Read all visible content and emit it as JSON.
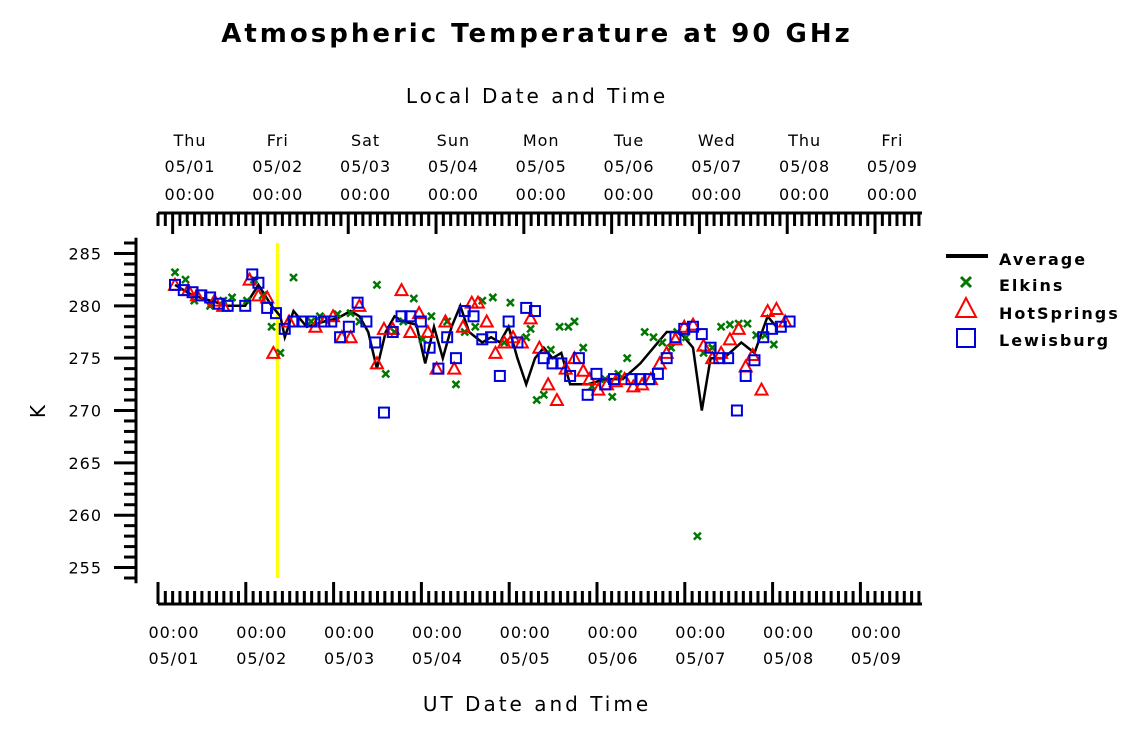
{
  "chart_data": {
    "type": "scatter",
    "title": "Atmospheric Temperature at 90 GHz",
    "top_axis_label": "Local Date and Time",
    "xlabel": "UT Date and Time",
    "ylabel": "K",
    "ylim": [
      254,
      286
    ],
    "yticks": [
      255,
      260,
      265,
      270,
      275,
      280,
      285
    ],
    "x_range_days": [
      "04/30 12:00",
      "05/09 12:00"
    ],
    "marker_line": {
      "value": "05/02 04:00",
      "color": "#ffff00"
    },
    "bottom_ticks": [
      {
        "line1": "00:00",
        "line2": "05/01"
      },
      {
        "line1": "00:00",
        "line2": "05/02"
      },
      {
        "line1": "00:00",
        "line2": "05/03"
      },
      {
        "line1": "00:00",
        "line2": "05/04"
      },
      {
        "line1": "00:00",
        "line2": "05/05"
      },
      {
        "line1": "00:00",
        "line2": "05/06"
      },
      {
        "line1": "00:00",
        "line2": "05/07"
      },
      {
        "line1": "00:00",
        "line2": "05/08"
      },
      {
        "line1": "00:00",
        "line2": "05/09"
      }
    ],
    "top_ticks": [
      {
        "day": "Thu",
        "date": "05/01",
        "time": "00:00"
      },
      {
        "day": "Fri",
        "date": "05/02",
        "time": "00:00"
      },
      {
        "day": "Sat",
        "date": "05/03",
        "time": "00:00"
      },
      {
        "day": "Sun",
        "date": "05/04",
        "time": "00:00"
      },
      {
        "day": "Mon",
        "date": "05/05",
        "time": "00:00"
      },
      {
        "day": "Tue",
        "date": "05/06",
        "time": "00:00"
      },
      {
        "day": "Wed",
        "date": "05/07",
        "time": "00:00"
      },
      {
        "day": "Thu",
        "date": "05/08",
        "time": "00:00"
      },
      {
        "day": "Fri",
        "date": "05/09",
        "time": "00:00"
      }
    ],
    "legend_position": "right",
    "series": [
      {
        "name": "Average",
        "marker": "line",
        "color": "#000000",
        "points": [
          [
            0.0,
            282
          ],
          [
            0.2,
            281
          ],
          [
            0.4,
            280.5
          ],
          [
            0.6,
            280
          ],
          [
            0.8,
            280
          ],
          [
            0.95,
            282
          ],
          [
            1.1,
            280
          ],
          [
            1.2,
            279
          ],
          [
            1.25,
            277
          ],
          [
            1.35,
            279.5
          ],
          [
            1.5,
            278
          ],
          [
            1.7,
            278.5
          ],
          [
            1.85,
            278.8
          ],
          [
            2.0,
            279.5
          ],
          [
            2.1,
            279
          ],
          [
            2.2,
            277.5
          ],
          [
            2.3,
            274
          ],
          [
            2.4,
            277.5
          ],
          [
            2.5,
            279
          ],
          [
            2.6,
            278.5
          ],
          [
            2.75,
            278.2
          ],
          [
            2.85,
            274.5
          ],
          [
            2.95,
            278
          ],
          [
            3.05,
            275
          ],
          [
            3.15,
            278
          ],
          [
            3.25,
            280
          ],
          [
            3.35,
            277.5
          ],
          [
            3.5,
            276.5
          ],
          [
            3.6,
            277
          ],
          [
            3.7,
            276.5
          ],
          [
            3.8,
            278
          ],
          [
            3.9,
            275
          ],
          [
            4.0,
            272.5
          ],
          [
            4.1,
            275
          ],
          [
            4.2,
            276
          ],
          [
            4.3,
            275
          ],
          [
            4.4,
            275.5
          ],
          [
            4.5,
            272.5
          ],
          [
            4.7,
            272.5
          ],
          [
            4.9,
            273
          ],
          [
            5.1,
            273
          ],
          [
            5.3,
            274.5
          ],
          [
            5.45,
            276
          ],
          [
            5.6,
            277.5
          ],
          [
            5.75,
            277.5
          ],
          [
            5.9,
            276
          ],
          [
            6.0,
            270
          ],
          [
            6.1,
            275
          ],
          [
            6.25,
            275
          ],
          [
            6.45,
            276.5
          ],
          [
            6.6,
            275.5
          ],
          [
            6.75,
            279
          ],
          [
            6.85,
            278
          ]
        ]
      },
      {
        "name": "Elkins",
        "marker": "x",
        "color": "#007700",
        "points": [
          [
            0.0,
            283.2
          ],
          [
            0.12,
            282.5
          ],
          [
            0.22,
            280.5
          ],
          [
            0.4,
            280
          ],
          [
            0.55,
            280.5
          ],
          [
            0.65,
            280.8
          ],
          [
            0.82,
            280.5
          ],
          [
            0.9,
            282.5
          ],
          [
            1.0,
            281
          ],
          [
            1.1,
            278
          ],
          [
            1.2,
            275.5
          ],
          [
            1.35,
            282.7
          ],
          [
            1.55,
            278.5
          ],
          [
            1.65,
            279
          ],
          [
            1.85,
            279.2
          ],
          [
            2.0,
            279.3
          ],
          [
            2.1,
            278.5
          ],
          [
            2.3,
            282
          ],
          [
            2.4,
            273.5
          ],
          [
            2.5,
            277.5
          ],
          [
            2.6,
            278.5
          ],
          [
            2.72,
            280.7
          ],
          [
            2.82,
            276.8
          ],
          [
            2.92,
            279
          ],
          [
            3.1,
            278.5
          ],
          [
            3.2,
            272.5
          ],
          [
            3.3,
            277.5
          ],
          [
            3.42,
            278
          ],
          [
            3.5,
            280.5
          ],
          [
            3.62,
            280.8
          ],
          [
            3.75,
            276.5
          ],
          [
            3.82,
            280.3
          ],
          [
            4.0,
            277
          ],
          [
            4.05,
            277.8
          ],
          [
            4.12,
            271
          ],
          [
            4.2,
            271.5
          ],
          [
            4.28,
            275.8
          ],
          [
            4.38,
            278
          ],
          [
            4.48,
            278
          ],
          [
            4.55,
            278.5
          ],
          [
            4.65,
            276
          ],
          [
            4.75,
            272.3
          ],
          [
            4.9,
            273
          ],
          [
            4.98,
            271.3
          ],
          [
            5.05,
            273.5
          ],
          [
            5.15,
            275
          ],
          [
            5.35,
            277.5
          ],
          [
            5.45,
            277
          ],
          [
            5.55,
            276.5
          ],
          [
            5.65,
            276
          ],
          [
            5.72,
            277.5
          ],
          [
            5.82,
            277
          ],
          [
            5.95,
            258
          ],
          [
            6.02,
            275.5
          ],
          [
            6.12,
            276
          ],
          [
            6.22,
            278
          ],
          [
            6.32,
            278.2
          ],
          [
            6.42,
            278.3
          ],
          [
            6.52,
            278.3
          ],
          [
            6.62,
            277.2
          ],
          [
            6.72,
            277.2
          ],
          [
            6.82,
            276.3
          ]
        ]
      },
      {
        "name": "HotSprings",
        "marker": "triangle",
        "color": "#ff0000",
        "points": [
          [
            0.0,
            282
          ],
          [
            0.15,
            281.5
          ],
          [
            0.25,
            281
          ],
          [
            0.45,
            280.5
          ],
          [
            0.55,
            280
          ],
          [
            0.85,
            282.5
          ],
          [
            0.95,
            281
          ],
          [
            1.05,
            280.8
          ],
          [
            1.12,
            275.5
          ],
          [
            1.3,
            278.5
          ],
          [
            1.6,
            278
          ],
          [
            1.7,
            278.5
          ],
          [
            1.8,
            279
          ],
          [
            1.9,
            277
          ],
          [
            2.0,
            277
          ],
          [
            2.1,
            280
          ],
          [
            2.3,
            274.5
          ],
          [
            2.38,
            277.8
          ],
          [
            2.48,
            277.8
          ],
          [
            2.58,
            281.5
          ],
          [
            2.68,
            277.5
          ],
          [
            2.78,
            279.3
          ],
          [
            2.88,
            277.5
          ],
          [
            2.98,
            274
          ],
          [
            3.08,
            278.5
          ],
          [
            3.18,
            274
          ],
          [
            3.28,
            278
          ],
          [
            3.38,
            280.3
          ],
          [
            3.45,
            280.3
          ],
          [
            3.55,
            278.5
          ],
          [
            3.65,
            275.5
          ],
          [
            3.75,
            276.5
          ],
          [
            3.85,
            277
          ],
          [
            3.95,
            276.5
          ],
          [
            4.05,
            278.8
          ],
          [
            4.15,
            276
          ],
          [
            4.25,
            272.5
          ],
          [
            4.35,
            271
          ],
          [
            4.45,
            274
          ],
          [
            4.55,
            275
          ],
          [
            4.65,
            273.8
          ],
          [
            4.72,
            273
          ],
          [
            4.82,
            272
          ],
          [
            4.92,
            272.5
          ],
          [
            5.02,
            272.8
          ],
          [
            5.12,
            273
          ],
          [
            5.22,
            272.3
          ],
          [
            5.32,
            272.5
          ],
          [
            5.42,
            273
          ],
          [
            5.52,
            274.5
          ],
          [
            5.6,
            275.5
          ],
          [
            5.7,
            276.8
          ],
          [
            5.8,
            278
          ],
          [
            5.9,
            278.2
          ],
          [
            6.02,
            276.2
          ],
          [
            6.12,
            275
          ],
          [
            6.22,
            275.5
          ],
          [
            6.32,
            276.8
          ],
          [
            6.42,
            277.8
          ],
          [
            6.5,
            274.2
          ],
          [
            6.58,
            275.3
          ],
          [
            6.68,
            272
          ],
          [
            6.75,
            279.5
          ],
          [
            6.85,
            279.7
          ],
          [
            6.95,
            278.5
          ]
        ]
      },
      {
        "name": "Lewisburg",
        "marker": "square",
        "color": "#0000dd",
        "points": [
          [
            0.0,
            282
          ],
          [
            0.1,
            281.5
          ],
          [
            0.2,
            281.3
          ],
          [
            0.3,
            281
          ],
          [
            0.4,
            280.8
          ],
          [
            0.5,
            280.2
          ],
          [
            0.6,
            280
          ],
          [
            0.8,
            280
          ],
          [
            0.88,
            283
          ],
          [
            0.95,
            282.2
          ],
          [
            1.05,
            279.8
          ],
          [
            1.15,
            279.3
          ],
          [
            1.25,
            277.8
          ],
          [
            1.35,
            278.5
          ],
          [
            1.45,
            278.5
          ],
          [
            1.55,
            278.5
          ],
          [
            1.7,
            278.5
          ],
          [
            1.78,
            278.5
          ],
          [
            1.88,
            277
          ],
          [
            1.98,
            278
          ],
          [
            2.08,
            280.3
          ],
          [
            2.18,
            278.5
          ],
          [
            2.28,
            276.5
          ],
          [
            2.38,
            269.8
          ],
          [
            2.48,
            277.5
          ],
          [
            2.58,
            279
          ],
          [
            2.68,
            279
          ],
          [
            2.8,
            278.5
          ],
          [
            2.9,
            276
          ],
          [
            3.0,
            274
          ],
          [
            3.1,
            277
          ],
          [
            3.2,
            275
          ],
          [
            3.3,
            279.5
          ],
          [
            3.4,
            279
          ],
          [
            3.5,
            276.8
          ],
          [
            3.6,
            277
          ],
          [
            3.7,
            273.3
          ],
          [
            3.8,
            278.5
          ],
          [
            3.9,
            276.5
          ],
          [
            4.0,
            279.8
          ],
          [
            4.1,
            279.5
          ],
          [
            4.2,
            275
          ],
          [
            4.3,
            274.5
          ],
          [
            4.4,
            274.5
          ],
          [
            4.5,
            273.3
          ],
          [
            4.6,
            275
          ],
          [
            4.7,
            271.5
          ],
          [
            4.8,
            273.5
          ],
          [
            4.9,
            272.5
          ],
          [
            5.0,
            273
          ],
          [
            5.2,
            273
          ],
          [
            5.3,
            273
          ],
          [
            5.4,
            273
          ],
          [
            5.5,
            273.5
          ],
          [
            5.6,
            275
          ],
          [
            5.7,
            277
          ],
          [
            5.8,
            277.8
          ],
          [
            5.9,
            278
          ],
          [
            6.0,
            277.3
          ],
          [
            6.1,
            276
          ],
          [
            6.2,
            275
          ],
          [
            6.3,
            275
          ],
          [
            6.4,
            270
          ],
          [
            6.5,
            273.3
          ],
          [
            6.6,
            274.8
          ],
          [
            6.7,
            277
          ],
          [
            6.8,
            277.8
          ],
          [
            6.9,
            278
          ],
          [
            7.0,
            278.5
          ]
        ]
      }
    ]
  }
}
